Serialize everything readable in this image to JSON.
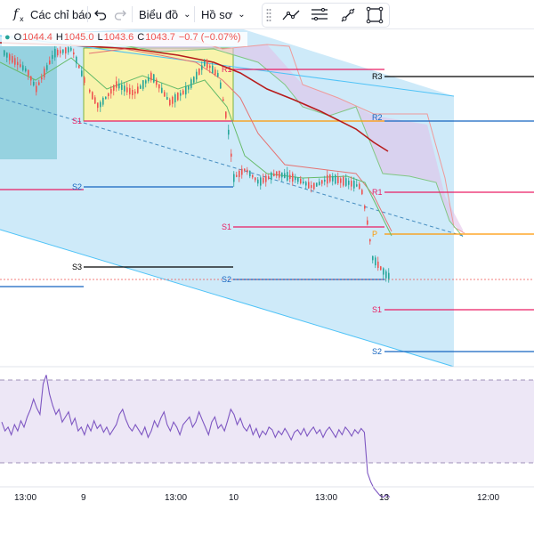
{
  "toolbar": {
    "indicators_label": "Các chỉ báo",
    "chart_type_label": "Biểu đồ",
    "templates_label": "Hồ sơ",
    "icons": {
      "indicators": "fx-icon",
      "undo": "undo-icon",
      "redo": "redo-icon",
      "trend_line": "trend-line-icon",
      "fib": "fib-retracement-icon",
      "brush": "brush-icon",
      "rectangle": "rectangle-icon"
    }
  },
  "ohlc": {
    "o_key": "O",
    "o": "1044.4",
    "h_key": "H",
    "h": "1045.0",
    "l_key": "L",
    "l": "1043.6",
    "c_key": "C",
    "c": "1043.7",
    "change": "−0.7 (−0.07%)"
  },
  "colors": {
    "up": "#26a69a",
    "down": "#ef5350",
    "channel_fill": "#bde3f7",
    "resistance": "#e91e63",
    "support": "#1565c0",
    "pivot": "#ff9800",
    "rsi_line": "#7e57c2",
    "rsi_band": "#ede7f6"
  },
  "levels": [
    {
      "label": "R3",
      "color": "#000000"
    },
    {
      "label": "R2",
      "color": "#1565c0"
    },
    {
      "label": "R1",
      "color": "#e91e63"
    },
    {
      "label": "P",
      "color": "#ff9800"
    },
    {
      "label": "S1",
      "color": "#e91e63"
    },
    {
      "label": "S2",
      "color": "#1565c0"
    },
    {
      "label": "S3",
      "color": "#000000"
    }
  ],
  "x_axis": {
    "ticks": [
      "13:00",
      "9",
      "13:00",
      "10",
      "13:00",
      "13",
      "12:00"
    ]
  },
  "chart_data": {
    "type": "candlestick",
    "price_last": 1043.7,
    "rsi_values": [
      62,
      55,
      58,
      52,
      60,
      55,
      63,
      58,
      66,
      72,
      80,
      73,
      68,
      92,
      99,
      84,
      75,
      68,
      72,
      62,
      66,
      70,
      60,
      65,
      55,
      58,
      52,
      60,
      55,
      63,
      57,
      60,
      54,
      58,
      52,
      56,
      60,
      68,
      72,
      64,
      58,
      55,
      60,
      56,
      52,
      58,
      50,
      55,
      63,
      58,
      65,
      70,
      60,
      55,
      62,
      58,
      52,
      60,
      63,
      66,
      58,
      62,
      70,
      64,
      58,
      52,
      62,
      66,
      57,
      60,
      55,
      63,
      72,
      68,
      60,
      65,
      58,
      55,
      60,
      52,
      57,
      50,
      55,
      52,
      58,
      56,
      50,
      55,
      52,
      57,
      53,
      48,
      54,
      56,
      52,
      57,
      51,
      55,
      58,
      53,
      56,
      50,
      55,
      58,
      54,
      50,
      56,
      52,
      58,
      55,
      51,
      56,
      53,
      57,
      54,
      22,
      15,
      10,
      7,
      4,
      3,
      5,
      3
    ]
  }
}
